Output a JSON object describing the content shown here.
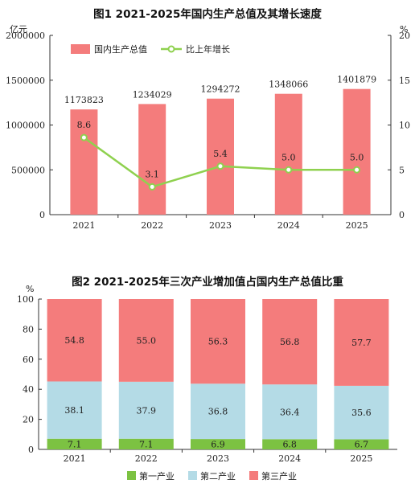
{
  "chart_data": [
    {
      "type": "bar",
      "title": "图1  2021-2025年国内生产总值及其增长速度",
      "y_unit_left": "亿元",
      "y_unit_right": "%",
      "categories": [
        "2021",
        "2022",
        "2023",
        "2024",
        "2025"
      ],
      "series": [
        {
          "name": "国内生产总值",
          "type": "bar",
          "axis": "left",
          "values": [
            1173823,
            1234029,
            1294272,
            1348066,
            1401879
          ],
          "labels": [
            "1173823",
            "1234029",
            "1294272",
            "1348066",
            "1401879"
          ],
          "color": "#f47c7c"
        },
        {
          "name": "比上年增长",
          "type": "line",
          "axis": "right",
          "values": [
            8.6,
            3.1,
            5.4,
            5.0,
            5.0
          ],
          "labels": [
            "8.6",
            "3.1",
            "5.4",
            "5.0",
            "5.0"
          ],
          "color": "#8fd14f"
        }
      ],
      "ylim_left": [
        0,
        2000000
      ],
      "yticks_left": [
        "0",
        "500000",
        "1000000",
        "1500000",
        "2000000"
      ],
      "ylim_right": [
        0,
        20
      ],
      "yticks_right": [
        "0",
        "5",
        "10",
        "15",
        "20"
      ],
      "legend_position": "top-left",
      "grid": false
    },
    {
      "type": "bar",
      "stacked": true,
      "title": "图2  2021-2025年三次产业增加值占国内生产总值比重",
      "y_unit": "%",
      "categories": [
        "2021",
        "2022",
        "2023",
        "2024",
        "2025"
      ],
      "series": [
        {
          "name": "第一产业",
          "values": [
            7.1,
            7.1,
            6.9,
            6.8,
            6.7
          ],
          "labels": [
            "7.1",
            "7.1",
            "6.9",
            "6.8",
            "6.7"
          ],
          "color": "#7cc242"
        },
        {
          "name": "第二产业",
          "values": [
            38.1,
            37.9,
            36.8,
            36.4,
            35.6
          ],
          "labels": [
            "38.1",
            "37.9",
            "36.8",
            "36.4",
            "35.6"
          ],
          "color": "#b4dbe6"
        },
        {
          "name": "第三产业",
          "values": [
            54.8,
            55.0,
            56.3,
            56.8,
            57.7
          ],
          "labels": [
            "54.8",
            "55.0",
            "56.3",
            "56.8",
            "57.7"
          ],
          "color": "#f47c7c"
        }
      ],
      "ylim": [
        0,
        100
      ],
      "yticks": [
        "0",
        "20",
        "40",
        "60",
        "80",
        "100"
      ],
      "legend_position": "bottom",
      "grid": false
    }
  ]
}
